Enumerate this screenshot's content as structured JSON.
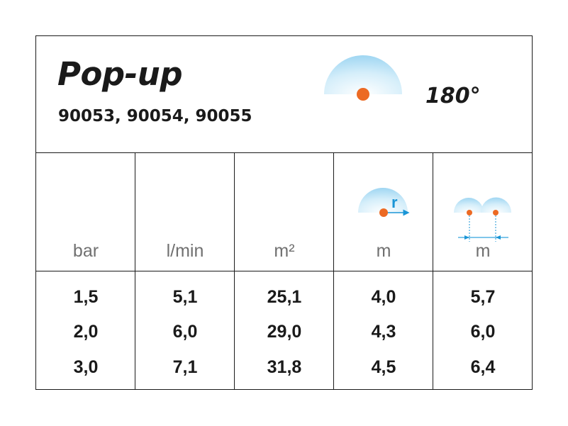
{
  "header": {
    "title": "Pop-up",
    "codes": "90053, 90054, 90055",
    "angle": "180°",
    "icon": "half-circle-spray-pattern-icon"
  },
  "columns": [
    {
      "unit": "bar"
    },
    {
      "unit": "l/min"
    },
    {
      "unit": "m²"
    },
    {
      "unit": "m",
      "icon": "radius-icon",
      "icon_label": "r"
    },
    {
      "unit": "m",
      "icon": "spacing-icon"
    }
  ],
  "rows": [
    [
      "1,5",
      "5,1",
      "25,1",
      "4,0",
      "5,7"
    ],
    [
      "2,0",
      "6,0",
      "29,0",
      "4,3",
      "6,0"
    ],
    [
      "3,0",
      "7,1",
      "31,8",
      "4,5",
      "6,4"
    ]
  ],
  "colors": {
    "spray": "#a9dbf3",
    "nozzle": "#ec6a24",
    "arrow": "#1a95d6"
  }
}
